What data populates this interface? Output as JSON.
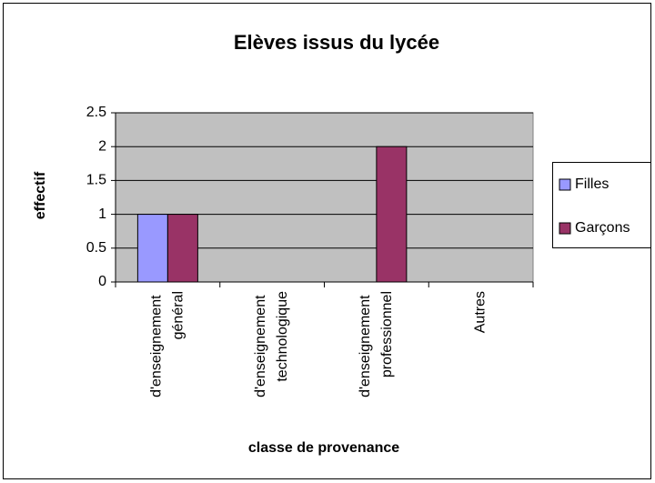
{
  "chart_data": {
    "type": "bar",
    "title": "Elèves issus du lycée",
    "x_label": "classe de provenance",
    "y_label": "effectif",
    "categories": [
      "d'enseignement général",
      "d'enseignement technologique",
      "d'enseignement professionnel",
      "Autres"
    ],
    "series": [
      {
        "name": "Filles",
        "color": "#9999ff",
        "values": [
          1,
          0,
          0,
          0
        ]
      },
      {
        "name": "Garçons",
        "color": "#993366",
        "values": [
          1,
          0,
          2,
          0
        ]
      }
    ],
    "ylim": [
      0,
      2.5
    ],
    "yticks": [
      0,
      0.5,
      1,
      1.5,
      2,
      2.5
    ],
    "grid": true,
    "legend": "right"
  }
}
